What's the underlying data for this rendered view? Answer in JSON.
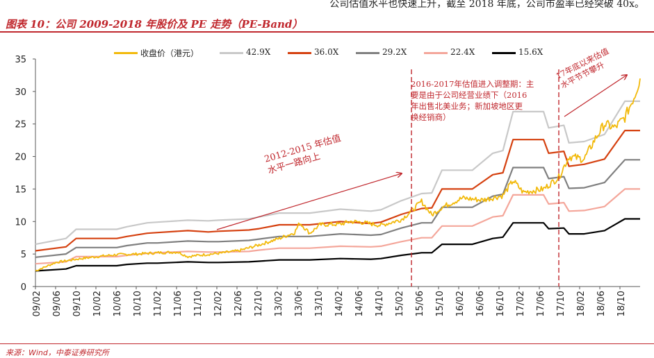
{
  "header": {
    "top_text": "公司估值水平也快速上升，截至 2018 年底，公司市盈率已经突破 40x。",
    "figure_title": "图表 10：公司 2009-2018 年股价及 PE 走势（PE-Band）"
  },
  "footer": {
    "source": "来源：Wind，中泰证券研究所"
  },
  "colors": {
    "brand": "#c0272d",
    "close_price": "#f2b90a",
    "pe_42_9": "#c8c8c8",
    "pe_36_0": "#d5400f",
    "pe_29_2": "#7f7f7f",
    "pe_22_4": "#f4a69a",
    "pe_15_6": "#000000"
  },
  "chart_data": {
    "type": "line",
    "title": "",
    "xlabel": "",
    "ylabel": "",
    "ylim": [
      0,
      35
    ],
    "yticks": [
      0,
      5,
      10,
      15,
      20,
      25,
      30,
      35
    ],
    "x_ticklabels": [
      "09/02",
      "09/06",
      "09/10",
      "10/02",
      "10/06",
      "10/10",
      "11/02",
      "11/06",
      "11/10",
      "12/02",
      "12/06",
      "12/10",
      "13/02",
      "13/06",
      "13/10",
      "14/02",
      "14/06",
      "14/10",
      "15/02",
      "15/06",
      "15/10",
      "16/02",
      "16/06",
      "16/10",
      "17/02",
      "17/06",
      "17/10",
      "18/02",
      "18/06",
      "18/10"
    ],
    "x_range": [
      "2009-02",
      "2019-01"
    ],
    "grid": false,
    "legend_position": "top",
    "legend": [
      "收盘价（港元）",
      "42.9X",
      "36.0X",
      "29.2X",
      "22.4X",
      "15.6X"
    ],
    "pe_band_x": [
      "2009-02",
      "2009-08",
      "2009-10",
      "2010-06",
      "2010-08",
      "2010-12",
      "2011-02",
      "2011-08",
      "2011-12",
      "2012-02",
      "2012-08",
      "2012-10",
      "2013-02",
      "2013-08",
      "2014-02",
      "2014-08",
      "2014-10",
      "2015-02",
      "2015-06",
      "2015-08",
      "2015-10",
      "2016-02",
      "2016-04",
      "2016-08",
      "2016-10",
      "2016-12",
      "2017-06",
      "2017-07",
      "2017-10",
      "2017-11",
      "2018-02",
      "2018-06",
      "2018-10",
      "2019-01"
    ],
    "series": [
      {
        "name": "42.9X",
        "values": [
          6.5,
          7.4,
          8.8,
          8.8,
          9.2,
          9.8,
          9.9,
          10.2,
          10.1,
          10.2,
          10.4,
          10.7,
          11.3,
          11.3,
          11.9,
          11.6,
          11.8,
          13.2,
          14.3,
          14.4,
          17.9,
          17.9,
          17.9,
          20.5,
          20.9,
          26.9,
          26.9,
          24.4,
          24.8,
          22.1,
          22.3,
          23.4,
          28.5,
          28.5
        ]
      },
      {
        "name": "36.0X",
        "values": [
          5.5,
          6.1,
          7.4,
          7.4,
          7.7,
          8.2,
          8.3,
          8.6,
          8.4,
          8.5,
          8.7,
          8.9,
          9.5,
          9.5,
          10.0,
          9.7,
          9.9,
          11.1,
          12.0,
          12.1,
          15.0,
          15.0,
          15.0,
          17.2,
          17.5,
          22.6,
          22.6,
          20.5,
          20.8,
          18.5,
          18.8,
          19.6,
          24.0,
          24.0
        ]
      },
      {
        "name": "29.2X",
        "values": [
          4.5,
          5.0,
          6.0,
          6.0,
          6.3,
          6.7,
          6.7,
          7.0,
          6.9,
          6.9,
          7.1,
          7.3,
          7.7,
          7.7,
          8.1,
          7.9,
          8.0,
          9.0,
          9.8,
          9.8,
          12.2,
          12.2,
          12.2,
          13.9,
          14.2,
          18.3,
          18.3,
          16.6,
          16.9,
          15.1,
          15.2,
          16.0,
          19.5,
          19.5
        ]
      },
      {
        "name": "22.4X",
        "values": [
          3.5,
          3.8,
          4.6,
          4.6,
          4.8,
          5.1,
          5.2,
          5.4,
          5.3,
          5.3,
          5.4,
          5.6,
          5.9,
          5.9,
          6.2,
          6.1,
          6.2,
          6.9,
          7.5,
          7.5,
          9.3,
          9.3,
          9.3,
          10.7,
          10.9,
          14.1,
          14.1,
          12.7,
          12.9,
          11.6,
          11.7,
          12.3,
          15.0,
          15.0
        ]
      },
      {
        "name": "15.6X",
        "values": [
          2.4,
          2.7,
          3.2,
          3.2,
          3.4,
          3.6,
          3.6,
          3.8,
          3.7,
          3.7,
          3.8,
          3.9,
          4.1,
          4.1,
          4.3,
          4.2,
          4.3,
          4.8,
          5.2,
          5.2,
          6.5,
          6.5,
          6.5,
          7.4,
          7.6,
          9.8,
          9.8,
          8.9,
          9.0,
          8.1,
          8.1,
          8.6,
          10.4,
          10.4
        ]
      }
    ],
    "price_series": {
      "name": "收盘价（港元）",
      "x": [
        "2009-02",
        "2009-06",
        "2009-10",
        "2010-02",
        "2010-06",
        "2010-10",
        "2011-02",
        "2011-06",
        "2011-08",
        "2011-10",
        "2012-02",
        "2012-06",
        "2012-10",
        "2013-02",
        "2013-05",
        "2013-06",
        "2013-08",
        "2013-10",
        "2014-02",
        "2014-04",
        "2014-06",
        "2014-10",
        "2015-02",
        "2015-04",
        "2015-06",
        "2015-08",
        "2015-10",
        "2016-02",
        "2016-06",
        "2016-10",
        "2016-12",
        "2017-02",
        "2017-06",
        "2017-09",
        "2017-11",
        "2018-02",
        "2018-04",
        "2018-06",
        "2018-08",
        "2018-10",
        "2018-12",
        "2019-01"
      ],
      "values": [
        2.4,
        3.7,
        4.2,
        4.6,
        4.9,
        5.0,
        5.2,
        5.3,
        4.6,
        4.8,
        5.1,
        5.5,
        6.4,
        7.4,
        8.3,
        9.8,
        8.2,
        9.5,
        9.6,
        10.0,
        9.9,
        9.4,
        10.3,
        11.6,
        13.1,
        11.0,
        12.2,
        13.6,
        13.3,
        14.0,
        16.3,
        14.5,
        15.0,
        16.8,
        20.0,
        19.6,
        22.5,
        25.0,
        24.4,
        26.0,
        29.5,
        32.0
      ]
    },
    "vlines": [
      "2015-04",
      "2017-09"
    ],
    "annotations": [
      {
        "text": [
          "2016-2017年估值进入调整期：主",
          "要是由于公司经营业绩下（2016",
          "年出售北美业务；新加坡地区更",
          "换经销商）"
        ]
      },
      {
        "text": [
          "2012-2015 年估值",
          "水平一路向上"
        ]
      },
      {
        "text": [
          "17年底以来估值",
          "水平节节攀升"
        ]
      }
    ]
  }
}
